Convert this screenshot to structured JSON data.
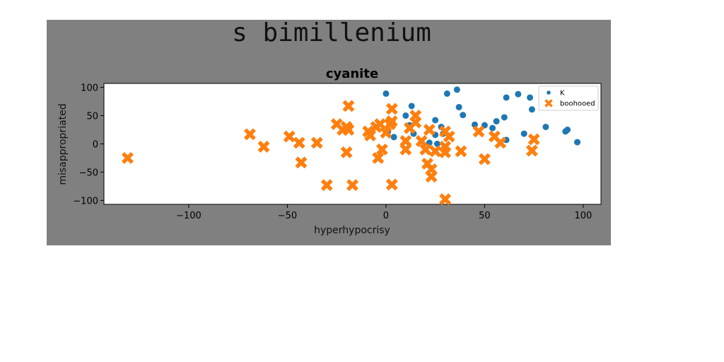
{
  "figure_title": "s bimillenium",
  "chart_data": {
    "type": "scatter",
    "title": "cyanite",
    "xlabel": "hyperhypocrisy",
    "ylabel": "misappropriated",
    "xlim": [
      -143,
      109
    ],
    "ylim": [
      -107,
      107
    ],
    "xticks": [
      -100,
      -50,
      0,
      50,
      100
    ],
    "yticks": [
      -100,
      -50,
      0,
      50,
      100
    ],
    "grid": false,
    "legend_position": "top-right",
    "series": [
      {
        "name": "K",
        "marker": "circle",
        "color": "#1f77b4",
        "points": [
          [
            0,
            89
          ],
          [
            36,
            96
          ],
          [
            31,
            89
          ],
          [
            61,
            82
          ],
          [
            67,
            88
          ],
          [
            73,
            82
          ],
          [
            10,
            50
          ],
          [
            13,
            67
          ],
          [
            37,
            65
          ],
          [
            39,
            51
          ],
          [
            56,
            40
          ],
          [
            60,
            47
          ],
          [
            74,
            61
          ],
          [
            25,
            42
          ],
          [
            45,
            34
          ],
          [
            50,
            33
          ],
          [
            54,
            28
          ],
          [
            81,
            30
          ],
          [
            70,
            18
          ],
          [
            92,
            25
          ],
          [
            91,
            22
          ],
          [
            97,
            3
          ],
          [
            1,
            22
          ],
          [
            14,
            18
          ],
          [
            28,
            30
          ],
          [
            25,
            16
          ],
          [
            61,
            7
          ],
          [
            12,
            33
          ],
          [
            4,
            12
          ],
          [
            22,
            2
          ],
          [
            29,
            18
          ],
          [
            26,
            0
          ]
        ]
      },
      {
        "name": "boohooed",
        "marker": "x",
        "color": "#ff7f0e",
        "points": [
          [
            -131,
            -25
          ],
          [
            -69,
            17
          ],
          [
            -62,
            -5
          ],
          [
            -49,
            13
          ],
          [
            -44,
            2
          ],
          [
            -43,
            -33
          ],
          [
            -35,
            2
          ],
          [
            -30,
            -73
          ],
          [
            -25,
            35
          ],
          [
            -22,
            25
          ],
          [
            -20,
            30
          ],
          [
            -19,
            25
          ],
          [
            -20,
            -15
          ],
          [
            -19,
            67
          ],
          [
            -17,
            -73
          ],
          [
            -9,
            22
          ],
          [
            -8,
            15
          ],
          [
            -5,
            30
          ],
          [
            -3,
            35
          ],
          [
            -4,
            -25
          ],
          [
            -2,
            -10
          ],
          [
            0,
            20
          ],
          [
            2,
            35
          ],
          [
            3,
            62
          ],
          [
            3,
            40
          ],
          [
            3,
            -72
          ],
          [
            10,
            5
          ],
          [
            10,
            -10
          ],
          [
            12,
            28
          ],
          [
            15,
            50
          ],
          [
            15,
            38
          ],
          [
            18,
            5
          ],
          [
            20,
            -10
          ],
          [
            21,
            -35
          ],
          [
            22,
            25
          ],
          [
            23,
            -45
          ],
          [
            23,
            -58
          ],
          [
            25,
            -13
          ],
          [
            30,
            22
          ],
          [
            30,
            -5
          ],
          [
            30,
            -15
          ],
          [
            32,
            13
          ],
          [
            30,
            -98
          ],
          [
            38,
            -13
          ],
          [
            47,
            22
          ],
          [
            50,
            -27
          ],
          [
            55,
            13
          ],
          [
            58,
            2
          ],
          [
            74,
            -12
          ],
          [
            75,
            8
          ]
        ]
      }
    ]
  }
}
